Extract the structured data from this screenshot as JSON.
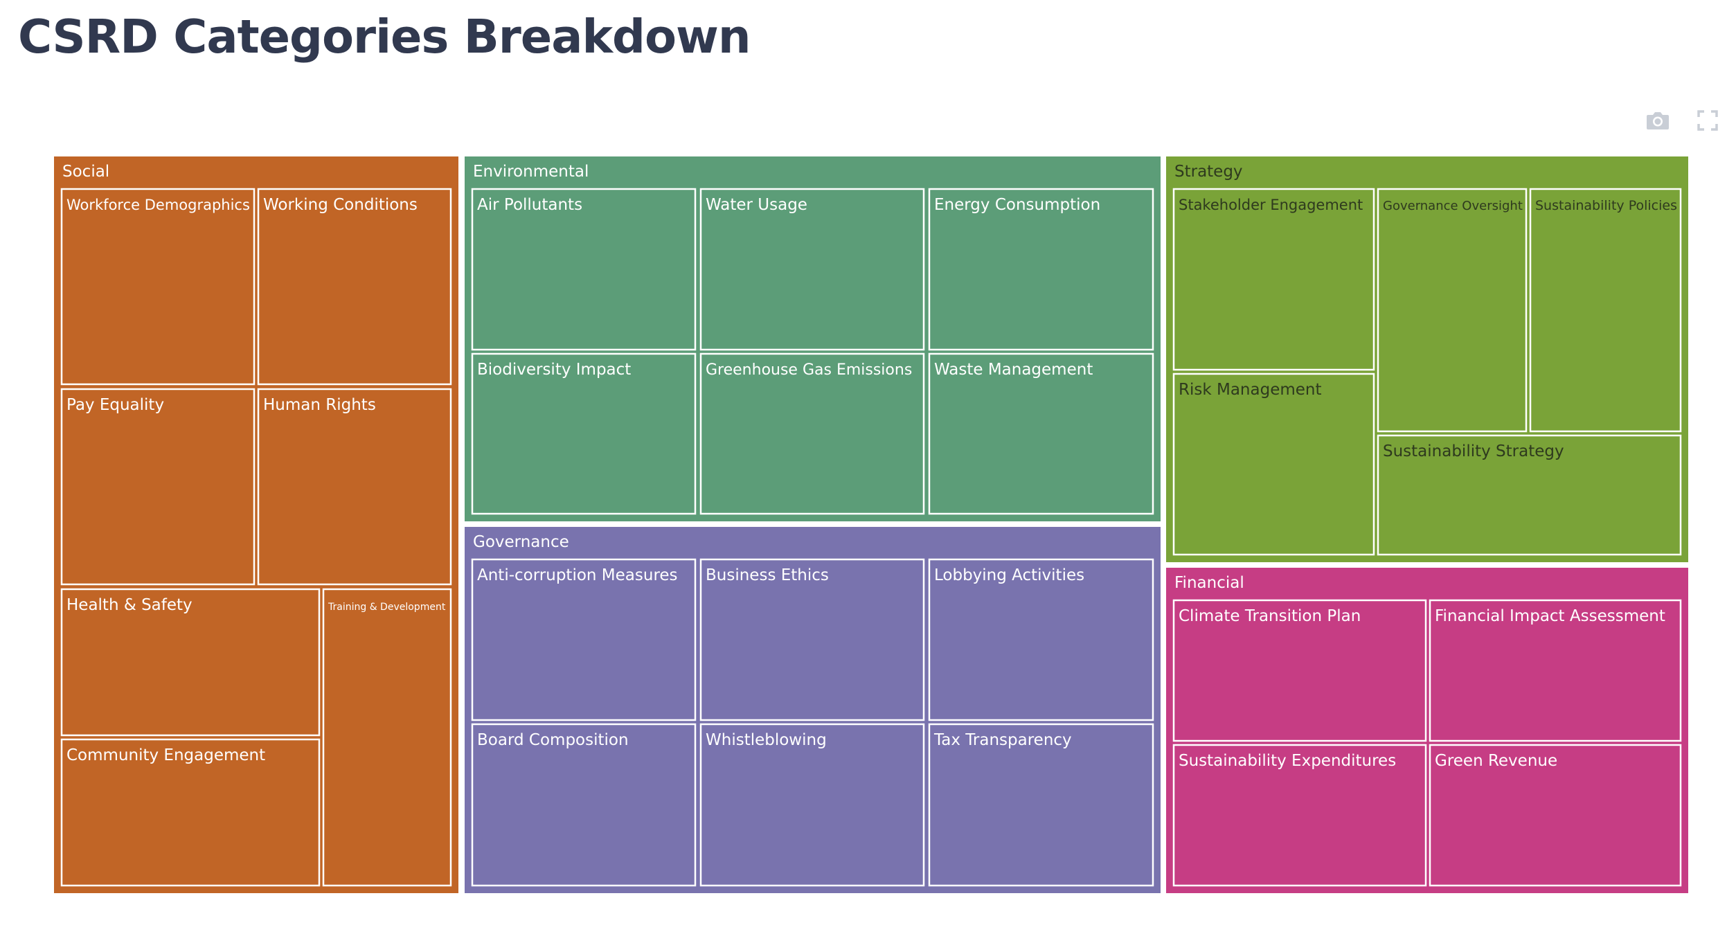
{
  "title": "CSRD Categories Breakdown",
  "toolbar": {
    "camera_icon": "camera-icon",
    "fullscreen_icon": "fullscreen-icon"
  },
  "chart_data": {
    "type": "treemap",
    "title": "CSRD Categories Breakdown",
    "categories": [
      {
        "name": "Social",
        "color": "#c16526",
        "label_color": "#ffffff",
        "children": [
          {
            "name": "Workforce Demographics",
            "value": 1
          },
          {
            "name": "Working Conditions",
            "value": 1
          },
          {
            "name": "Pay Equality",
            "value": 1
          },
          {
            "name": "Human Rights",
            "value": 1
          },
          {
            "name": "Health & Safety",
            "value": 1
          },
          {
            "name": "Community Engagement",
            "value": 1
          },
          {
            "name": "Training & Development",
            "value": 1
          }
        ]
      },
      {
        "name": "Environmental",
        "color": "#5c9d78",
        "label_color": "#ffffff",
        "children": [
          {
            "name": "Air Pollutants",
            "value": 1
          },
          {
            "name": "Water Usage",
            "value": 1
          },
          {
            "name": "Energy Consumption",
            "value": 1
          },
          {
            "name": "Biodiversity Impact",
            "value": 1
          },
          {
            "name": "Greenhouse Gas Emissions",
            "value": 1
          },
          {
            "name": "Waste Management",
            "value": 1
          }
        ]
      },
      {
        "name": "Governance",
        "color": "#7973ae",
        "label_color": "#ffffff",
        "children": [
          {
            "name": "Anti-corruption Measures",
            "value": 1
          },
          {
            "name": "Business Ethics",
            "value": 1
          },
          {
            "name": "Lobbying Activities",
            "value": 1
          },
          {
            "name": "Board Composition",
            "value": 1
          },
          {
            "name": "Whistleblowing",
            "value": 1
          },
          {
            "name": "Tax Transparency",
            "value": 1
          }
        ]
      },
      {
        "name": "Strategy",
        "color": "#7aa338",
        "label_color": "#2e3a1e",
        "children": [
          {
            "name": "Stakeholder Engagement",
            "value": 1
          },
          {
            "name": "Risk Management",
            "value": 1
          },
          {
            "name": "Governance Oversight",
            "value": 1
          },
          {
            "name": "Sustainability Policies",
            "value": 1
          },
          {
            "name": "Sustainability Strategy",
            "value": 1
          }
        ]
      },
      {
        "name": "Financial",
        "color": "#c63d84",
        "label_color": "#ffffff",
        "children": [
          {
            "name": "Climate Transition Plan",
            "value": 1
          },
          {
            "name": "Financial Impact Assessment",
            "value": 1
          },
          {
            "name": "Sustainability Expenditures",
            "value": 1
          },
          {
            "name": "Green Revenue",
            "value": 1
          }
        ]
      }
    ]
  }
}
